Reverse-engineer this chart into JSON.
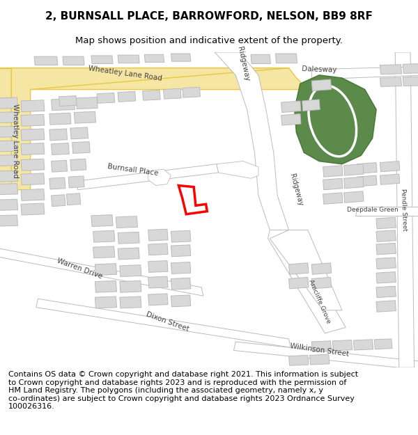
{
  "title_line1": "2, BURNSALL PLACE, BARROWFORD, NELSON, BB9 8RF",
  "title_line2": "Map shows position and indicative extent of the property.",
  "footer_text": "Contains OS data © Crown copyright and database right 2021. This information is subject\nto Crown copyright and database rights 2023 and is reproduced with the permission of\nHM Land Registry. The polygons (including the associated geometry, namely x, y\nco-ordinates) are subject to Crown copyright and database rights 2023 Ordnance Survey\n100026316.",
  "map_bg": "#f5f5f5",
  "road_yellow_fill": "#f5e6a3",
  "road_yellow_stroke": "#e8c840",
  "road_white": "#ffffff",
  "road_stroke": "#bbbbbb",
  "building_color": "#d8d8d8",
  "building_stroke": "#bbbbbb",
  "highlight_color": "#ff0000",
  "green_dark": "#5c8a4a",
  "green_light": "#ffffff",
  "title_fontsize": 11,
  "subtitle_fontsize": 9.5,
  "footer_fontsize": 8.0,
  "label_fontsize": 7.5,
  "label_color": "#444444"
}
